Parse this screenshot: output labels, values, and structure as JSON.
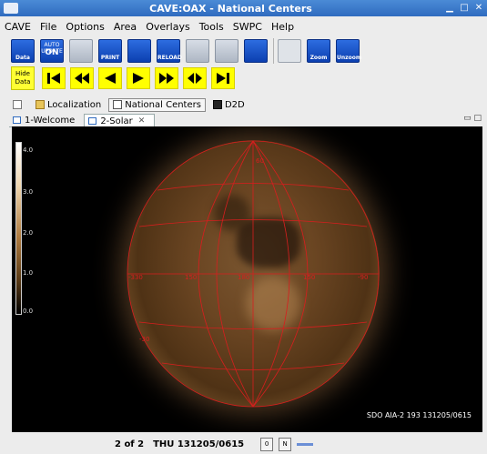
{
  "window": {
    "title": "CAVE:OAX - National Centers"
  },
  "menu": [
    "CAVE",
    "File",
    "Options",
    "Area",
    "Overlays",
    "Tools",
    "SWPC",
    "Help"
  ],
  "toolbar": {
    "data_label": "Data",
    "auto_update_top": "AUTO UPDATE",
    "auto_update_state": "ON",
    "print_label": "PRINT",
    "reload_label": "RELOAD",
    "zoom_label": "Zoom",
    "unzoom_label": "Unzoom"
  },
  "hide_data": {
    "line1": "Hide",
    "line2": "Data"
  },
  "perspectives": [
    "Localization",
    "National Centers",
    "D2D"
  ],
  "tabs": [
    {
      "label": "1-Welcome"
    },
    {
      "label": "2-Solar"
    }
  ],
  "colorbar": {
    "labels": [
      "4.0",
      "3.0",
      "2.0",
      "1.0",
      "0.0"
    ]
  },
  "grid_labels": {
    "lat_pos": "60",
    "lat_neg": "-30",
    "lon_right": "150",
    "lon_left": "150",
    "lon_center": "180",
    "lon_far_right": "-90",
    "lon_left2": "-330"
  },
  "image_info": "SDO AIA-2 193 131205/0615",
  "status": {
    "frame": "2 of 2",
    "time": "THU 131205/0615",
    "btn_zero": "0",
    "btn_n": "N"
  }
}
